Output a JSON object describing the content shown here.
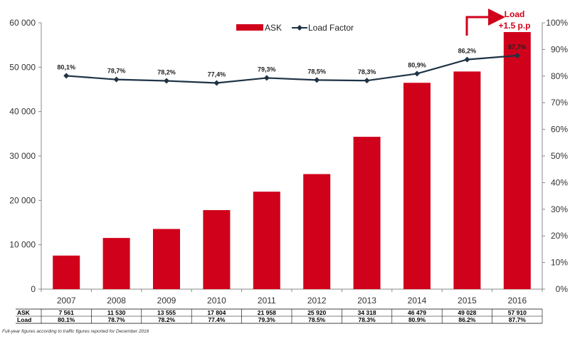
{
  "footnote": "Full-year figures according to traffic figures reported for December 2016",
  "annotation": {
    "line1": "Load",
    "line2": "+1.5 p.p"
  },
  "colors": {
    "bar": "#d0021b",
    "line": "#1f3345",
    "axis": "#888888",
    "annotation": "#d0021b"
  },
  "chart_data": {
    "type": "bar",
    "title": "",
    "xlabel": "",
    "ylabel": "",
    "categories": [
      "2007",
      "2008",
      "2009",
      "2010",
      "2011",
      "2012",
      "2013",
      "2014",
      "2015",
      "2016"
    ],
    "series": [
      {
        "name": "ASK",
        "type": "bar",
        "axis": "left",
        "values": [
          7561,
          11530,
          13555,
          17804,
          21958,
          25920,
          34318,
          46479,
          49028,
          57910
        ]
      },
      {
        "name": "Load Factor",
        "type": "line",
        "axis": "right",
        "values": [
          80.1,
          78.7,
          78.2,
          77.4,
          79.3,
          78.5,
          78.3,
          80.9,
          86.2,
          87.7
        ],
        "point_labels": [
          "80,1%",
          "78,7%",
          "78,2%",
          "77,4%",
          "79,3%",
          "78,5%",
          "78,3%",
          "80,9%",
          "86,2%",
          "87,7%"
        ]
      }
    ],
    "ylim": [
      0,
      60000
    ],
    "y_ticks": [
      "0",
      "10 000",
      "20 000",
      "30 000",
      "40 000",
      "50 000",
      "60 000"
    ],
    "y2lim": [
      0,
      100
    ],
    "y2_ticks": [
      "0%",
      "10%",
      "20%",
      "30%",
      "40%",
      "50%",
      "60%",
      "70%",
      "80%",
      "90%",
      "100%"
    ],
    "legend": {
      "placement": "top-center",
      "entries": [
        "ASK",
        "Load Factor"
      ]
    },
    "grid": false,
    "table": {
      "rows": [
        {
          "label": "ASK",
          "values": [
            "7 561",
            "11 530",
            "13 555",
            "17 804",
            "21 958",
            "25 920",
            "34 318",
            "46 479",
            "49 028",
            "57 910"
          ]
        },
        {
          "label": "Load",
          "values": [
            "80.1%",
            "78.7%",
            "78.2%",
            "77.4%",
            "79.3%",
            "78.5%",
            "78.3%",
            "80.9%",
            "86.2%",
            "87.7%"
          ]
        }
      ]
    }
  }
}
